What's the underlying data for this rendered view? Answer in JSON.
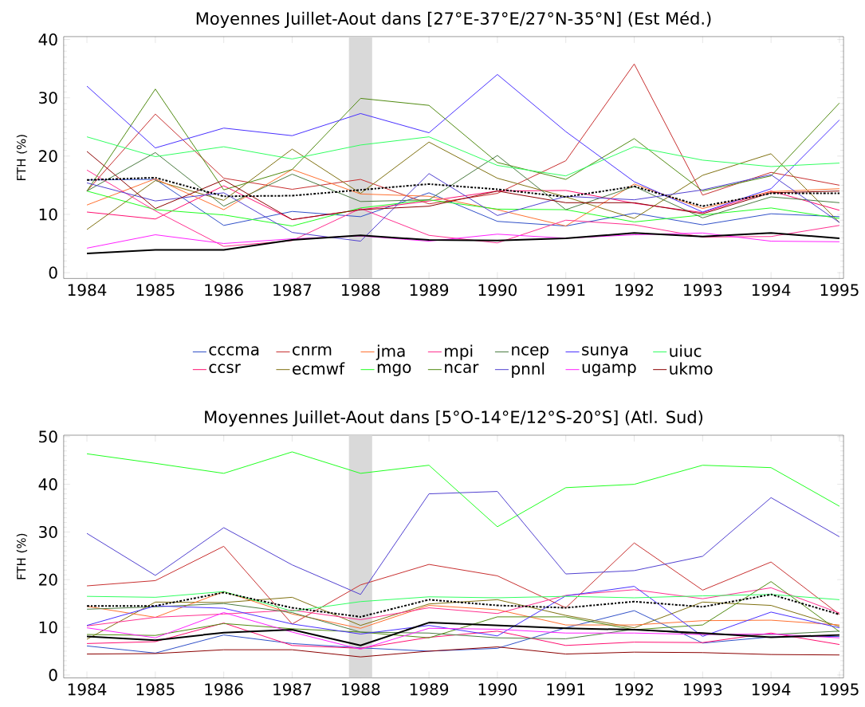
{
  "chart_data": [
    {
      "type": "line",
      "title": "Moyennes Juillet-Aout dans [27°E-37°E/27°N-35°N] (Est Méd.)",
      "ylabel": "FTH (%)",
      "x": [
        1984,
        1985,
        1986,
        1987,
        1988,
        1989,
        1990,
        1991,
        1992,
        1993,
        1994,
        1995
      ],
      "xlim": [
        1983.66,
        1995.06
      ],
      "xticks": [
        1984,
        1985,
        1986,
        1987,
        1988,
        1989,
        1990,
        1991,
        1992,
        1993,
        1994,
        1995
      ],
      "ylim": [
        -1,
        40.5
      ],
      "yticks": [
        0,
        10,
        20,
        30,
        40
      ],
      "legend": "bottom",
      "marker": "none",
      "line_style": "solid",
      "bands": [
        {
          "axis": "x",
          "from": 1987.83,
          "to": 1988.17,
          "color": "#d9d9d9"
        }
      ],
      "series": [
        {
          "name": "cccma",
          "color": "#3050c8",
          "values": [
            15.9,
            16.0,
            8.1,
            10.5,
            9.6,
            13.7,
            8.8,
            8.0,
            10.2,
            8.2,
            10.1,
            9.6
          ]
        },
        {
          "name": "ccsr",
          "color": "#ff1070",
          "values": [
            10.4,
            9.2,
            14.9,
            9.1,
            10.8,
            12.3,
            14.0,
            14.1,
            11.9,
            10.3,
            14.0,
            10.7
          ]
        },
        {
          "name": "cnrm",
          "color": "#c83030",
          "values": [
            14.0,
            27.2,
            16.2,
            14.3,
            16.0,
            11.8,
            13.6,
            19.2,
            35.8,
            13.3,
            17.2,
            15.0
          ]
        },
        {
          "name": "ecmwf",
          "color": "#807010",
          "values": [
            7.4,
            15.8,
            12.4,
            21.2,
            13.6,
            22.4,
            16.2,
            13.0,
            9.3,
            16.7,
            20.4,
            8.6
          ]
        },
        {
          "name": "jma",
          "color": "#ff7030",
          "values": [
            11.6,
            16.1,
            10.8,
            17.7,
            13.5,
            13.1,
            10.8,
            8.0,
            15.2,
            11.0,
            13.9,
            14.4
          ]
        },
        {
          "name": "mgo",
          "color": "#20ff20",
          "values": [
            14.0,
            10.8,
            9.9,
            8.0,
            11.1,
            12.5,
            10.9,
            10.8,
            8.7,
            9.9,
            11.1,
            9.3
          ]
        },
        {
          "name": "mpi",
          "color": "#ff3090",
          "values": [
            17.6,
            10.6,
            4.5,
            5.5,
            11.0,
            6.4,
            5.1,
            9.0,
            8.2,
            6.1,
            6.2,
            8.1
          ]
        },
        {
          "name": "ncar",
          "color": "#4f8a10",
          "values": [
            14.0,
            31.5,
            14.2,
            17.7,
            29.9,
            28.7,
            18.9,
            16.0,
            23.0,
            14.0,
            16.6,
            29.1
          ]
        },
        {
          "name": "ncep",
          "color": "#4a7a40",
          "values": [
            14.0,
            20.6,
            11.4,
            16.9,
            12.2,
            12.5,
            20.1,
            10.8,
            14.8,
            9.4,
            13.0,
            12.0
          ]
        },
        {
          "name": "pnnl",
          "color": "#5040d0",
          "values": [
            15.4,
            12.3,
            13.7,
            6.9,
            5.4,
            17.0,
            9.8,
            13.1,
            12.5,
            14.2,
            16.8,
            8.6
          ]
        },
        {
          "name": "sunya",
          "color": "#4830ff",
          "values": [
            32.0,
            21.4,
            24.8,
            23.5,
            27.3,
            24.0,
            34.0,
            24.2,
            15.6,
            10.4,
            14.4,
            26.2
          ]
        },
        {
          "name": "ugamp",
          "color": "#ff20ff",
          "values": [
            4.2,
            6.5,
            5.0,
            5.8,
            6.3,
            5.4,
            6.6,
            5.9,
            6.5,
            6.8,
            5.4,
            5.3
          ]
        },
        {
          "name": "uiuc",
          "color": "#30ff60",
          "values": [
            23.3,
            19.9,
            21.6,
            19.5,
            21.9,
            23.3,
            18.4,
            16.6,
            21.6,
            19.3,
            18.2,
            18.8
          ]
        },
        {
          "name": "ukmo",
          "color": "#8b0000",
          "values": [
            20.8,
            11.0,
            15.9,
            9.1,
            10.8,
            11.4,
            14.0,
            12.0,
            12.0,
            10.1,
            13.7,
            14.0
          ]
        },
        {
          "color": "#000000",
          "values": [
            3.3,
            3.9,
            3.9,
            5.6,
            6.4,
            5.6,
            5.5,
            5.9,
            6.8,
            6.2,
            6.8,
            5.9
          ]
        },
        {
          "color": "#000000",
          "line_style": "dashdot",
          "values": [
            15.9,
            16.3,
            13.1,
            13.2,
            14.2,
            15.2,
            14.3,
            13.0,
            14.8,
            11.4,
            13.6,
            13.6
          ]
        }
      ]
    },
    {
      "type": "line",
      "title": "Moyennes Juillet-Aout dans [5°O-14°E/12°S-20°S] (Atl. Sud)",
      "ylabel": "FTH (%)",
      "x": [
        1984,
        1985,
        1986,
        1987,
        1988,
        1989,
        1990,
        1991,
        1992,
        1993,
        1994,
        1995
      ],
      "xlim": [
        1983.66,
        1995.06
      ],
      "xticks": [
        1984,
        1985,
        1986,
        1987,
        1988,
        1989,
        1990,
        1991,
        1992,
        1993,
        1994,
        1995
      ],
      "ylim": [
        -0.6,
        50.3
      ],
      "yticks": [
        0,
        10,
        20,
        30,
        40,
        50
      ],
      "marker": "none",
      "line_style": "solid",
      "bands": [
        {
          "axis": "x",
          "from": 1987.83,
          "to": 1988.17,
          "color": "#d9d9d9"
        }
      ],
      "series": [
        {
          "color": "#3050c8",
          "values": [
            6.1,
            4.6,
            8.4,
            6.6,
            5.7,
            5.0,
            5.6,
            9.9,
            13.5,
            6.7,
            8.0,
            8.1
          ]
        },
        {
          "color": "#ff1070",
          "values": [
            6.6,
            7.0,
            10.9,
            6.2,
            5.6,
            7.9,
            9.2,
            6.2,
            6.9,
            6.8,
            8.8,
            6.4
          ]
        },
        {
          "color": "#c83030",
          "values": [
            18.7,
            19.8,
            27.0,
            10.7,
            18.9,
            23.2,
            20.8,
            14.1,
            27.7,
            17.8,
            23.7,
            12.7
          ]
        },
        {
          "color": "#807010",
          "values": [
            7.5,
            15.3,
            15.2,
            16.3,
            10.4,
            14.9,
            15.8,
            12.5,
            9.9,
            15.3,
            14.6,
            10.2
          ]
        },
        {
          "color": "#ff7030",
          "values": [
            14.4,
            12.1,
            17.5,
            12.8,
            9.8,
            14.6,
            13.7,
            10.5,
            10.5,
            11.4,
            11.5,
            10.5
          ]
        },
        {
          "color": "#20ff20",
          "values": [
            46.4,
            44.4,
            42.3,
            46.8,
            42.3,
            44.0,
            31.1,
            39.3,
            40.0,
            44.0,
            43.5,
            35.4
          ]
        },
        {
          "color": "#ff3090",
          "values": [
            10.3,
            12.1,
            12.8,
            13.6,
            11.6,
            14.1,
            12.9,
            16.7,
            17.9,
            16.0,
            18.3,
            13.0
          ]
        },
        {
          "color": "#4f8a10",
          "values": [
            8.5,
            8.3,
            10.8,
            9.7,
            9.0,
            7.8,
            12.2,
            12.2,
            9.5,
            10.5,
            19.6,
            9.1
          ]
        },
        {
          "color": "#4a7a40",
          "values": [
            13.8,
            14.3,
            15.0,
            13.1,
            9.0,
            8.8,
            7.8,
            7.6,
            9.6,
            8.5,
            8.5,
            9.2
          ]
        },
        {
          "color": "#5040d0",
          "values": [
            29.7,
            20.9,
            30.9,
            23.1,
            16.9,
            38.0,
            38.5,
            21.2,
            21.9,
            24.9,
            37.2,
            29.0
          ]
        },
        {
          "color": "#4830ff",
          "values": [
            10.4,
            14.5,
            14.0,
            10.7,
            8.6,
            10.4,
            8.2,
            16.6,
            18.6,
            8.1,
            13.2,
            9.9
          ]
        },
        {
          "color": "#ff20ff",
          "values": [
            9.9,
            7.8,
            13.1,
            9.0,
            5.4,
            9.8,
            9.6,
            8.8,
            8.8,
            8.5,
            8.6,
            7.8
          ]
        },
        {
          "color": "#30ff60",
          "values": [
            16.5,
            16.3,
            17.5,
            13.4,
            15.4,
            16.4,
            16.2,
            16.5,
            16.2,
            16.6,
            16.9,
            15.8
          ]
        },
        {
          "color": "#8b0000",
          "values": [
            4.4,
            4.5,
            5.3,
            5.3,
            3.8,
            5.0,
            5.9,
            4.4,
            4.8,
            4.7,
            4.3,
            4.2
          ]
        },
        {
          "color": "#000000",
          "values": [
            8.1,
            7.3,
            8.9,
            9.5,
            6.2,
            11.0,
            10.4,
            9.8,
            9.5,
            8.8,
            7.9,
            8.4
          ]
        },
        {
          "color": "#000000",
          "line_style": "dashdot",
          "values": [
            14.5,
            14.5,
            17.3,
            14.1,
            12.2,
            15.8,
            14.6,
            14.1,
            15.4,
            14.3,
            16.9,
            12.7
          ]
        }
      ]
    }
  ]
}
